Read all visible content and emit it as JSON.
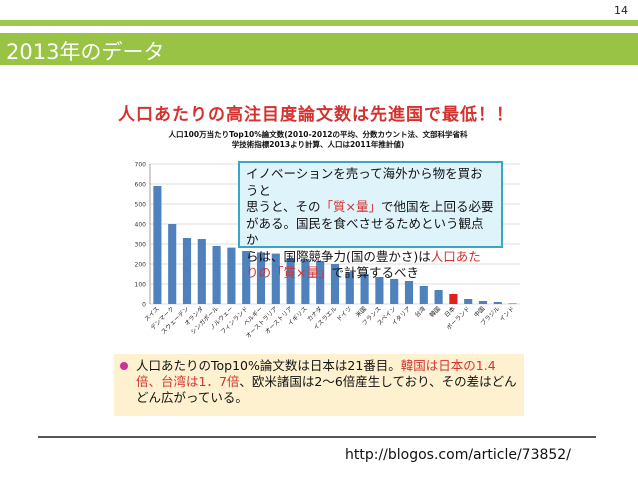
{
  "page_number": "14",
  "slide_title": "2013年のデータ",
  "figure": {
    "headline": "人口あたりの高注目度論文数は先進国で最低！！",
    "subtitle_line1": "人口100万当たりTop10%論文数(2010-2012の平均、分数カウント法、文部科学省科",
    "subtitle_line2": "学技術指標2013より計算、人口は2011年推計値)",
    "callout_lines": [
      {
        "text": "イノベーションを売って海外から物を買おうと",
        "parts": [
          {
            "t": "イノベーションを売って海外から物を買おうと",
            "hl": false
          }
        ]
      },
      {
        "text": "思うと、その「質×量」で他国を上回る必要",
        "parts": [
          {
            "t": "思うと、その",
            "hl": false
          },
          {
            "t": "「質×量」",
            "hl": true
          },
          {
            "t": "で他国を上回る必要",
            "hl": false
          }
        ]
      },
      {
        "text": "がある。国民を食べさせるためという観点か",
        "parts": [
          {
            "t": "がある。国民を食べさせるためという観点か",
            "hl": false
          }
        ]
      },
      {
        "text": "らは、国際競争力(国の豊かさ)は人口あた",
        "parts": [
          {
            "t": "らは、国際競争力(国の豊かさ)は",
            "hl": false
          },
          {
            "t": "人口あた",
            "hl": true
          }
        ]
      },
      {
        "text": "りの「質×量」で計算するべき",
        "parts": [
          {
            "t": "りの「質×量」",
            "hl": true
          },
          {
            "t": "で計算するべき",
            "hl": false
          }
        ]
      }
    ],
    "note_parts": [
      {
        "t": "人口あたりのTop10%論文数は日本は21番目。",
        "hl": false
      },
      {
        "t": "韓国は日本の1.4倍、台湾は1．7倍",
        "hl": true
      },
      {
        "t": "、欧米諸国は2〜6倍産生しており、その差はどんどん広がっている。",
        "hl": false
      }
    ]
  },
  "chart_data": {
    "type": "bar",
    "ylim": [
      0,
      700
    ],
    "yticks": [
      "0",
      "100",
      "200",
      "300",
      "400",
      "500",
      "600",
      "700"
    ],
    "categories": [
      "スイス",
      "デンマーク",
      "スウェーデン",
      "オランダ",
      "シンガポール",
      "ノルウェー",
      "フィンランド",
      "ベルギー",
      "オーストラリア",
      "オーストリア",
      "イギリス",
      "カナダ",
      "イスラエル",
      "ドイツ",
      "米国",
      "フランス",
      "スペイン",
      "イタリア",
      "台湾",
      "韓国",
      "日本",
      "ポーランド",
      "中国",
      "ブラジル",
      "インド"
    ],
    "values": [
      590,
      400,
      330,
      325,
      290,
      282,
      265,
      258,
      252,
      230,
      225,
      215,
      200,
      160,
      150,
      135,
      125,
      115,
      90,
      70,
      50,
      25,
      15,
      10,
      3
    ],
    "colors": {
      "bar": "#4f81bd",
      "highlight": "#e02020",
      "grid": "#d0d0d0",
      "axis": "#888888"
    },
    "highlight_category": "日本",
    "grid": true
  },
  "source_url": "http://blogos.com/article/73852/"
}
